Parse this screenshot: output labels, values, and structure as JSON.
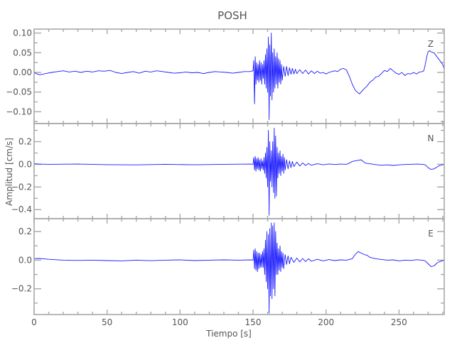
{
  "chart_data": {
    "type": "line",
    "title": "POSH",
    "xlabel": "Tiempo [s]",
    "ylabel": "Amplitud [cm/s]",
    "xlim": [
      0,
      281
    ],
    "x_ticks": [
      0,
      50,
      100,
      150,
      200,
      250
    ],
    "x_minor_step": 10,
    "grid": false,
    "line_color": "#1a1aff",
    "frame_color": "#a8a8a8",
    "panels": [
      {
        "component": "Z",
        "ylim": [
          -0.13,
          0.11
        ],
        "y_ticks": [
          0.1,
          0.05,
          0.0,
          -0.05,
          -0.1
        ],
        "y_tick_labels": [
          "0.10",
          "0.05",
          "0.00",
          "−0.05",
          "−0.10"
        ],
        "y_minor_step": 0.025,
        "t": [
          0,
          2,
          4,
          8,
          12,
          16,
          20,
          24,
          28,
          32,
          36,
          40,
          44,
          48,
          52,
          56,
          60,
          64,
          68,
          72,
          76,
          80,
          84,
          88,
          92,
          96,
          100,
          104,
          108,
          112,
          116,
          120,
          124,
          128,
          132,
          136,
          140,
          144,
          148,
          150,
          150.5,
          151,
          151.5,
          152,
          152.5,
          153,
          153.5,
          154,
          154.5,
          155,
          155.5,
          156,
          156.5,
          157,
          157.5,
          158,
          158.5,
          159,
          159.5,
          160,
          160.5,
          161,
          161.5,
          162,
          162.5,
          163,
          163.5,
          164,
          164.5,
          165,
          165.5,
          166,
          166.5,
          167,
          167.5,
          168,
          168.5,
          169,
          169.5,
          170,
          171,
          172,
          173,
          174,
          175,
          176,
          177,
          178,
          179,
          180,
          182,
          184,
          186,
          188,
          190,
          192,
          194,
          196,
          198,
          200,
          202,
          204,
          206,
          208,
          210,
          212,
          214,
          216,
          218,
          220,
          222,
          223,
          224,
          226,
          228,
          230,
          232,
          234,
          236,
          238,
          240,
          242,
          244,
          246,
          248,
          250,
          252,
          254,
          256,
          258,
          260,
          262,
          264,
          266,
          267,
          268,
          269,
          270,
          271,
          272,
          274,
          276,
          278,
          280,
          281
        ],
        "v": [
          0,
          -0.004,
          -0.006,
          -0.003,
          0,
          0.002,
          0.004,
          0.001,
          0.003,
          0,
          0.003,
          0.001,
          0.004,
          0.003,
          0.005,
          0,
          -0.003,
          0,
          0.002,
          -0.002,
          0.003,
          0.001,
          0.004,
          0.002,
          0,
          -0.002,
          -0.001,
          0.001,
          -0.001,
          0,
          -0.003,
          0,
          0.002,
          0.001,
          0,
          -0.002,
          0,
          0.002,
          0.002,
          0.004,
          0.03,
          -0.08,
          0.04,
          -0.03,
          0.025,
          -0.02,
          0.02,
          -0.025,
          0.03,
          -0.02,
          0.025,
          -0.03,
          0.02,
          -0.015,
          0.03,
          -0.03,
          0.045,
          -0.04,
          0.06,
          -0.05,
          0.09,
          -0.12,
          0.07,
          -0.06,
          0.1,
          -0.07,
          0.05,
          -0.05,
          0.06,
          -0.04,
          0.04,
          -0.03,
          0.05,
          -0.04,
          0.035,
          -0.025,
          0.03,
          -0.03,
          0.02,
          -0.02,
          0.015,
          -0.01,
          0.015,
          -0.008,
          0.012,
          -0.005,
          0.01,
          -0.004,
          0.008,
          -0.003,
          0.007,
          -0.003,
          0.006,
          -0.004,
          0.004,
          -0.003,
          0.003,
          -0.002,
          0,
          -0.004,
          0,
          0.002,
          0.004,
          0.002,
          0.008,
          0.01,
          0.006,
          -0.01,
          -0.03,
          -0.045,
          -0.052,
          -0.055,
          -0.05,
          -0.042,
          -0.035,
          -0.025,
          -0.02,
          -0.012,
          -0.01,
          -0.003,
          0.005,
          0.002,
          0.01,
          0.004,
          -0.002,
          -0.005,
          0,
          -0.008,
          -0.003,
          -0.004,
          0,
          -0.004,
          0.001,
          0.002,
          0.004,
          0.02,
          0.04,
          0.053,
          0.055,
          0.052,
          0.05,
          0.04,
          0.03,
          0.02,
          0.008,
          0.001
        ]
      },
      {
        "component": "N",
        "ylim": [
          -0.48,
          0.36
        ],
        "y_ticks": [
          0.2,
          0.0,
          -0.2,
          -0.4
        ],
        "y_tick_labels": [
          "0.2",
          "0.0",
          "−0.2",
          "−0.4"
        ],
        "y_minor_step": 0.1,
        "t": [
          0,
          3,
          10,
          30,
          50,
          70,
          90,
          110,
          130,
          148,
          150,
          150.5,
          151,
          151.5,
          152,
          152.5,
          153,
          153.5,
          154,
          154.5,
          155,
          155.5,
          156,
          156.5,
          157,
          157.5,
          158,
          158.5,
          159,
          159.5,
          160,
          160.5,
          161,
          161.5,
          162,
          162.5,
          163,
          163.5,
          164,
          164.5,
          165,
          165.5,
          166,
          166.5,
          167,
          167.5,
          168,
          168.5,
          169,
          169.5,
          170,
          170.5,
          171,
          171.5,
          172,
          173,
          174,
          175,
          176,
          177,
          178,
          180,
          182,
          184,
          186,
          188,
          190,
          194,
          198,
          202,
          206,
          210,
          214,
          216,
          218,
          220,
          222,
          224,
          225,
          227,
          230,
          234,
          238,
          242,
          246,
          250,
          254,
          258,
          262,
          266,
          268,
          270,
          272,
          274,
          276,
          278,
          281
        ],
        "v": [
          0.005,
          0.002,
          0,
          0.002,
          -0.003,
          -0.005,
          0,
          -0.004,
          0,
          0.002,
          0,
          0.06,
          -0.05,
          0.07,
          -0.06,
          0.05,
          -0.04,
          0.06,
          -0.05,
          0.04,
          -0.06,
          0.05,
          -0.04,
          0.03,
          -0.05,
          0.06,
          -0.08,
          0.1,
          -0.12,
          0.15,
          -0.2,
          0.3,
          -0.45,
          0.2,
          -0.15,
          0.12,
          -0.2,
          0.2,
          -0.25,
          0.32,
          -0.3,
          0.25,
          -0.28,
          0.15,
          -0.12,
          0.1,
          -0.08,
          0.12,
          -0.1,
          0.07,
          -0.06,
          0.09,
          -0.08,
          0.06,
          -0.05,
          0.04,
          -0.04,
          0.03,
          -0.03,
          0.025,
          -0.02,
          0.02,
          -0.015,
          0.012,
          -0.01,
          0.008,
          -0.008,
          0.005,
          -0.004,
          0.003,
          -0.002,
          0.002,
          0,
          0.01,
          0.025,
          0.03,
          0.035,
          0.04,
          0.03,
          0.01,
          0.005,
          -0.003,
          -0.008,
          -0.005,
          -0.01,
          -0.005,
          -0.002,
          0,
          0.002,
          0,
          -0.005,
          -0.03,
          -0.045,
          -0.04,
          -0.025,
          -0.01,
          0
        ]
      },
      {
        "component": "E",
        "ylim": [
          -0.38,
          0.29
        ],
        "y_ticks": [
          0.2,
          0.0,
          -0.2
        ],
        "y_tick_labels": [
          "0.2",
          "0.0",
          "−0.2"
        ],
        "y_minor_step": 0.1,
        "t": [
          0,
          3,
          6,
          10,
          20,
          30,
          40,
          50,
          60,
          70,
          80,
          90,
          100,
          110,
          120,
          130,
          140,
          148,
          150,
          150.5,
          151,
          151.5,
          152,
          152.5,
          153,
          153.5,
          154,
          154.5,
          155,
          155.5,
          156,
          156.5,
          157,
          157.5,
          158,
          158.5,
          159,
          159.5,
          160,
          160.5,
          161,
          161.5,
          162,
          162.5,
          163,
          163.5,
          164,
          164.5,
          165,
          165.5,
          166,
          166.5,
          167,
          167.5,
          168,
          168.5,
          169,
          169.5,
          170,
          170.5,
          171,
          172,
          173,
          174,
          175,
          176,
          178,
          180,
          182,
          184,
          186,
          188,
          190,
          194,
          198,
          202,
          206,
          210,
          214,
          218,
          220,
          222,
          224,
          226,
          228,
          230,
          234,
          238,
          242,
          246,
          250,
          254,
          258,
          262,
          266,
          268,
          270,
          272,
          274,
          276,
          278,
          281
        ],
        "v": [
          0.01,
          0.012,
          0.01,
          0.006,
          0,
          -0.002,
          0,
          -0.003,
          -0.005,
          0,
          -0.004,
          0,
          0.002,
          -0.003,
          0,
          0.002,
          0,
          0.002,
          0,
          0.07,
          -0.06,
          0.08,
          -0.07,
          0.06,
          -0.08,
          0.05,
          -0.06,
          0.05,
          -0.05,
          0.04,
          -0.05,
          0.06,
          -0.05,
          0.08,
          -0.1,
          0.14,
          -0.15,
          0.2,
          -0.2,
          0.18,
          -0.37,
          0.22,
          -0.25,
          0.26,
          -0.27,
          0.24,
          -0.2,
          0.26,
          -0.25,
          0.2,
          -0.1,
          0.12,
          -0.1,
          0.08,
          -0.07,
          0.1,
          -0.08,
          0.06,
          -0.05,
          0.05,
          -0.06,
          0.04,
          -0.03,
          0.03,
          -0.025,
          0.02,
          -0.015,
          0.015,
          -0.012,
          0.012,
          -0.01,
          0.01,
          -0.008,
          0.006,
          -0.005,
          0.004,
          -0.003,
          0.002,
          0,
          0.01,
          0.04,
          0.06,
          0.05,
          0.04,
          0.035,
          0.02,
          0.01,
          0.005,
          0,
          0.002,
          -0.005,
          0,
          -0.002,
          0.003,
          0,
          -0.005,
          -0.025,
          -0.045,
          -0.04,
          -0.02,
          -0.01,
          0
        ]
      }
    ]
  }
}
